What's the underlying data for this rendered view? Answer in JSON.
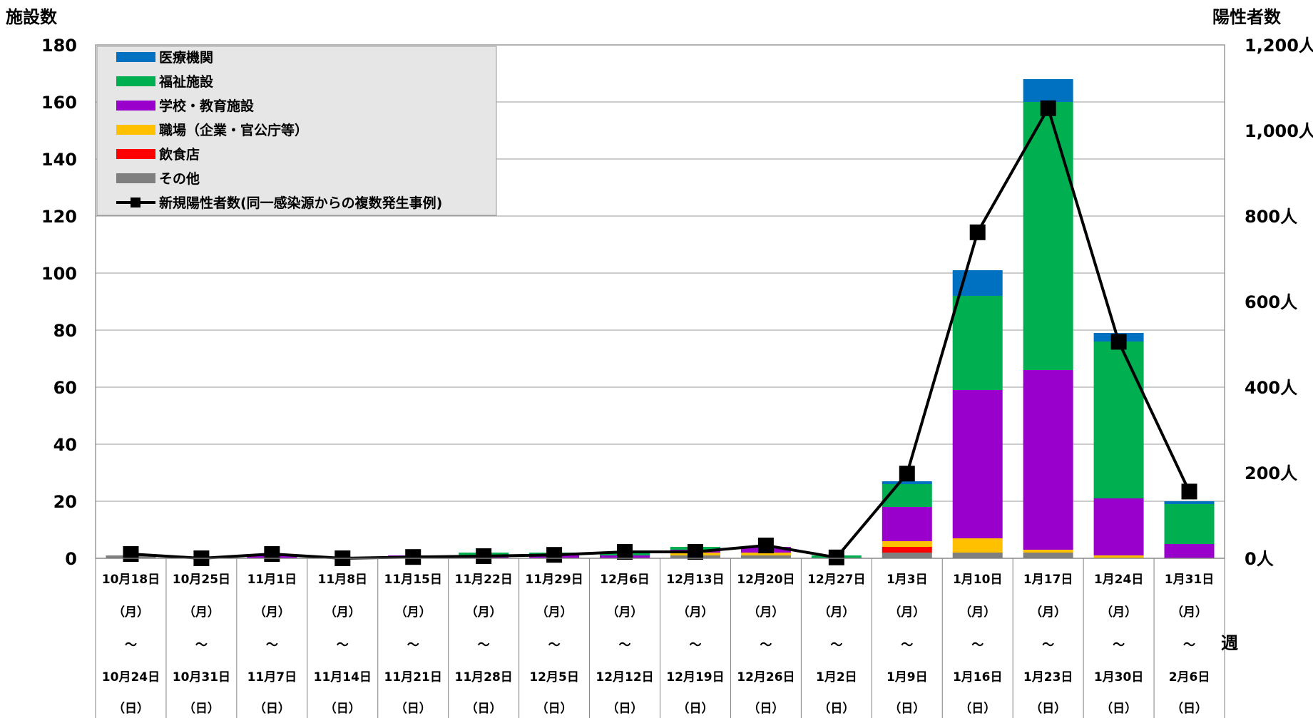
{
  "chart_data": {
    "type": "bar",
    "stacked": true,
    "left_axis": {
      "title": "施設数",
      "ylim": [
        0,
        180
      ],
      "ticks": [
        "180",
        "160",
        "140",
        "120",
        "100",
        "80",
        "60",
        "40",
        "20",
        "0"
      ]
    },
    "right_axis": {
      "title": "陽性者数",
      "ylim": [
        0,
        1200
      ],
      "ticks": [
        "1,200人",
        "1,000人",
        "800人",
        "600人",
        "400人",
        "200人",
        "0人"
      ]
    },
    "xlabel": "週",
    "categories": [
      {
        "start": "10月18日",
        "wd1": "（月）",
        "sep": "～",
        "end": "10月24日",
        "wd2": "（日）"
      },
      {
        "start": "10月25日",
        "wd1": "（月）",
        "sep": "～",
        "end": "10月31日",
        "wd2": "（日）"
      },
      {
        "start": "11月1日",
        "wd1": "（月）",
        "sep": "～",
        "end": "11月7日",
        "wd2": "（日）"
      },
      {
        "start": "11月8日",
        "wd1": "（月）",
        "sep": "～",
        "end": "11月14日",
        "wd2": "（日）"
      },
      {
        "start": "11月15日",
        "wd1": "（月）",
        "sep": "～",
        "end": "11月21日",
        "wd2": "（日）"
      },
      {
        "start": "11月22日",
        "wd1": "（月）",
        "sep": "～",
        "end": "11月28日",
        "wd2": "（日）"
      },
      {
        "start": "11月29日",
        "wd1": "（月）",
        "sep": "～",
        "end": "12月5日",
        "wd2": "（日）"
      },
      {
        "start": "12月6日",
        "wd1": "（月）",
        "sep": "～",
        "end": "12月12日",
        "wd2": "（日）"
      },
      {
        "start": "12月13日",
        "wd1": "（月）",
        "sep": "～",
        "end": "12月19日",
        "wd2": "（日）"
      },
      {
        "start": "12月20日",
        "wd1": "（月）",
        "sep": "～",
        "end": "12月26日",
        "wd2": "（日）"
      },
      {
        "start": "12月27日",
        "wd1": "（月）",
        "sep": "～",
        "end": "1月2日",
        "wd2": "（日）"
      },
      {
        "start": "1月3日",
        "wd1": "（月）",
        "sep": "～",
        "end": "1月9日",
        "wd2": "（日）"
      },
      {
        "start": "1月10日",
        "wd1": "（月）",
        "sep": "～",
        "end": "1月16日",
        "wd2": "（日）"
      },
      {
        "start": "1月17日",
        "wd1": "（月）",
        "sep": "～",
        "end": "1月23日",
        "wd2": "（日）"
      },
      {
        "start": "1月24日",
        "wd1": "（月）",
        "sep": "～",
        "end": "1月30日",
        "wd2": "（日）"
      },
      {
        "start": "1月31日",
        "wd1": "（月）",
        "sep": "～",
        "end": "2月6日",
        "wd2": "（日）"
      }
    ],
    "stack_order": [
      "その他",
      "飲食店",
      "職場（企業・官公庁等）",
      "学校・教育施設",
      "福祉施設",
      "医療機関"
    ],
    "series": [
      {
        "name": "医療機関",
        "color": "#0070C0",
        "values": [
          0,
          0,
          0,
          0,
          0,
          0,
          0,
          0,
          0,
          0,
          0,
          1,
          9,
          8,
          3,
          1
        ]
      },
      {
        "name": "福祉施設",
        "color": "#00B050",
        "values": [
          0,
          0,
          0,
          0,
          0,
          1,
          1,
          1,
          1,
          0,
          1,
          8,
          33,
          94,
          55,
          14
        ]
      },
      {
        "name": "学校・教育施設",
        "color": "#9900CC",
        "values": [
          0,
          0,
          1,
          0,
          1,
          1,
          1,
          1,
          1,
          2,
          0,
          12,
          52,
          63,
          20,
          5
        ]
      },
      {
        "name": "職場（企業・官公庁等）",
        "color": "#FFC000",
        "values": [
          0,
          0,
          0,
          0,
          0,
          0,
          0,
          0,
          1,
          1,
          0,
          2,
          5,
          1,
          1,
          0
        ]
      },
      {
        "name": "飲食店",
        "color": "#FF0000",
        "values": [
          0,
          0,
          0,
          0,
          0,
          0,
          0,
          0,
          0,
          0,
          0,
          2,
          0,
          0,
          0,
          0
        ]
      },
      {
        "name": "その他",
        "color": "#7F7F7F",
        "values": [
          1,
          0,
          0,
          0,
          0,
          0,
          0,
          0,
          1,
          1,
          0,
          2,
          2,
          2,
          0,
          0
        ]
      }
    ],
    "line_series": {
      "name": "新規陽性者数(同一感染源からの複数発生事例)",
      "color": "#000000",
      "axis": "right",
      "values": [
        10,
        0,
        10,
        0,
        3,
        5,
        8,
        15,
        15,
        30,
        2,
        198,
        762,
        1052,
        506,
        156
      ]
    },
    "legend": {
      "placement": "top-left"
    },
    "grid": true
  }
}
